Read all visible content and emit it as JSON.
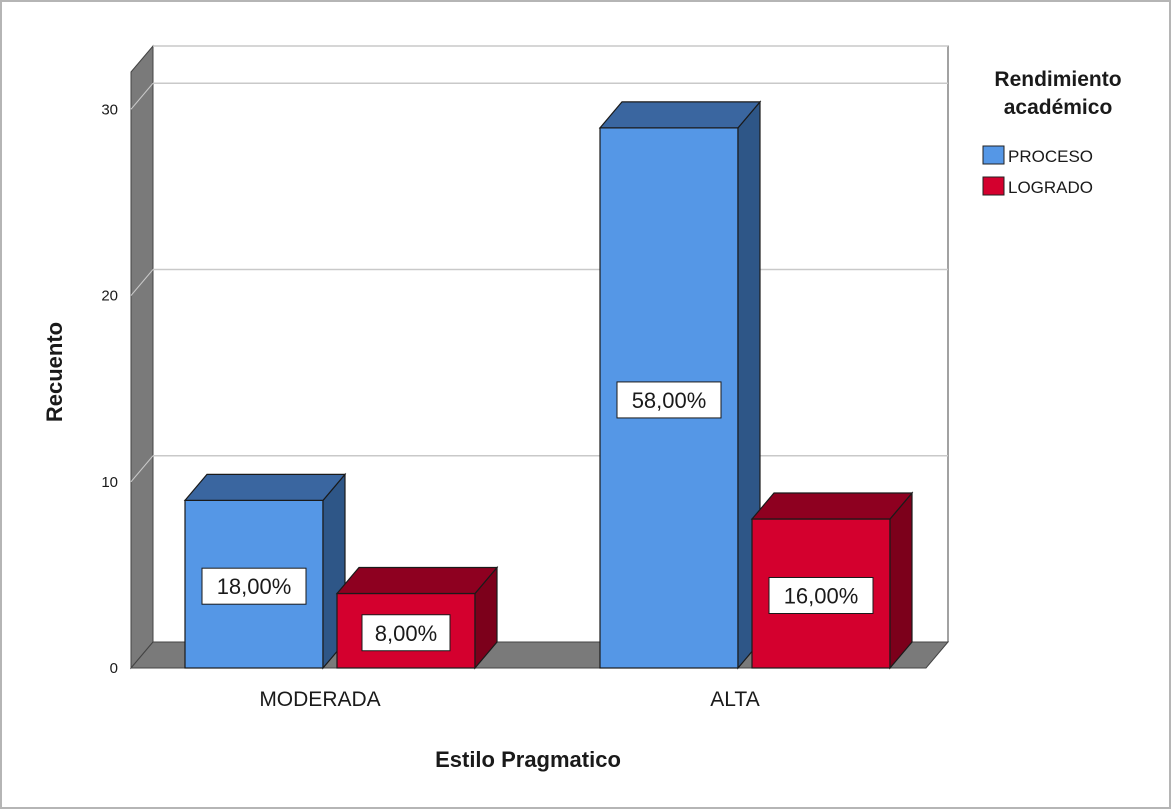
{
  "chart_data": {
    "type": "bar",
    "title": "",
    "xlabel": "Estilo Pragmatico",
    "ylabel": "Recuento",
    "categories": [
      "MODERADA",
      "ALTA"
    ],
    "series": [
      {
        "name": "PROCESO",
        "values": [
          9,
          29
        ],
        "labels": [
          "18,00%",
          "58,00%"
        ]
      },
      {
        "name": "LOGRADO",
        "values": [
          4,
          8
        ],
        "labels": [
          "8,00%",
          "16,00%"
        ]
      }
    ],
    "ylim": [
      0,
      32
    ],
    "yticks": [
      0,
      10,
      20,
      30
    ],
    "grid": true,
    "legend": {
      "title_line1": "Rendimiento",
      "title_line2": "académico",
      "placement": "right"
    },
    "three_d": true
  },
  "colors": {
    "PROCESO": {
      "front": "#5597e6",
      "side": "#2e5687",
      "top": "#3a66a0"
    },
    "LOGRADO": {
      "front": "#d4002e",
      "side": "#7c001b",
      "top": "#8e0020"
    },
    "wall": "#7a7a7a",
    "grid": "#c9c9c9",
    "frame": "#b5b5b5"
  }
}
